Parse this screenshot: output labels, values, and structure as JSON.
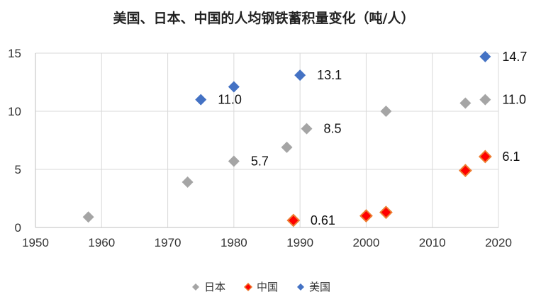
{
  "chart_data": {
    "type": "scatter",
    "title": "美国、日本、中国的人均钢铁蓄积量变化（吨/人）",
    "xlabel": "",
    "ylabel": "",
    "xlim": [
      1950,
      2020
    ],
    "ylim": [
      0,
      15
    ],
    "x_ticks": [
      "1950",
      "1960",
      "1970",
      "1980",
      "1990",
      "2000",
      "2010",
      "2020"
    ],
    "y_ticks": [
      "0",
      "5",
      "10",
      "15"
    ],
    "grid": true,
    "legend_position": "bottom",
    "series": [
      {
        "name": "日本",
        "color": "#a5a5a5",
        "marker": "diamond",
        "points": [
          {
            "x": 1958,
            "y": 0.9,
            "label": ""
          },
          {
            "x": 1973,
            "y": 3.9,
            "label": ""
          },
          {
            "x": 1980,
            "y": 5.7,
            "label": "5.7"
          },
          {
            "x": 1988,
            "y": 6.9,
            "label": ""
          },
          {
            "x": 1991,
            "y": 8.5,
            "label": "8.5"
          },
          {
            "x": 2003,
            "y": 10.0,
            "label": ""
          },
          {
            "x": 2015,
            "y": 10.7,
            "label": ""
          },
          {
            "x": 2018,
            "y": 11.0,
            "label": "11.0"
          }
        ]
      },
      {
        "name": "中国",
        "color": "#ff0000",
        "outline": "#ed7d31",
        "marker": "diamond",
        "points": [
          {
            "x": 1989,
            "y": 0.61,
            "label": "0.61"
          },
          {
            "x": 2000,
            "y": 1.0,
            "label": ""
          },
          {
            "x": 2003,
            "y": 1.3,
            "label": ""
          },
          {
            "x": 2015,
            "y": 4.9,
            "label": ""
          },
          {
            "x": 2018,
            "y": 6.1,
            "label": "6.1"
          }
        ]
      },
      {
        "name": "美国",
        "color": "#4472c4",
        "marker": "diamond",
        "points": [
          {
            "x": 1975,
            "y": 11.0,
            "label": "11.0"
          },
          {
            "x": 1980,
            "y": 12.1,
            "label": ""
          },
          {
            "x": 1990,
            "y": 13.1,
            "label": "13.1"
          },
          {
            "x": 2018,
            "y": 14.7,
            "label": "14.7"
          }
        ]
      }
    ]
  }
}
